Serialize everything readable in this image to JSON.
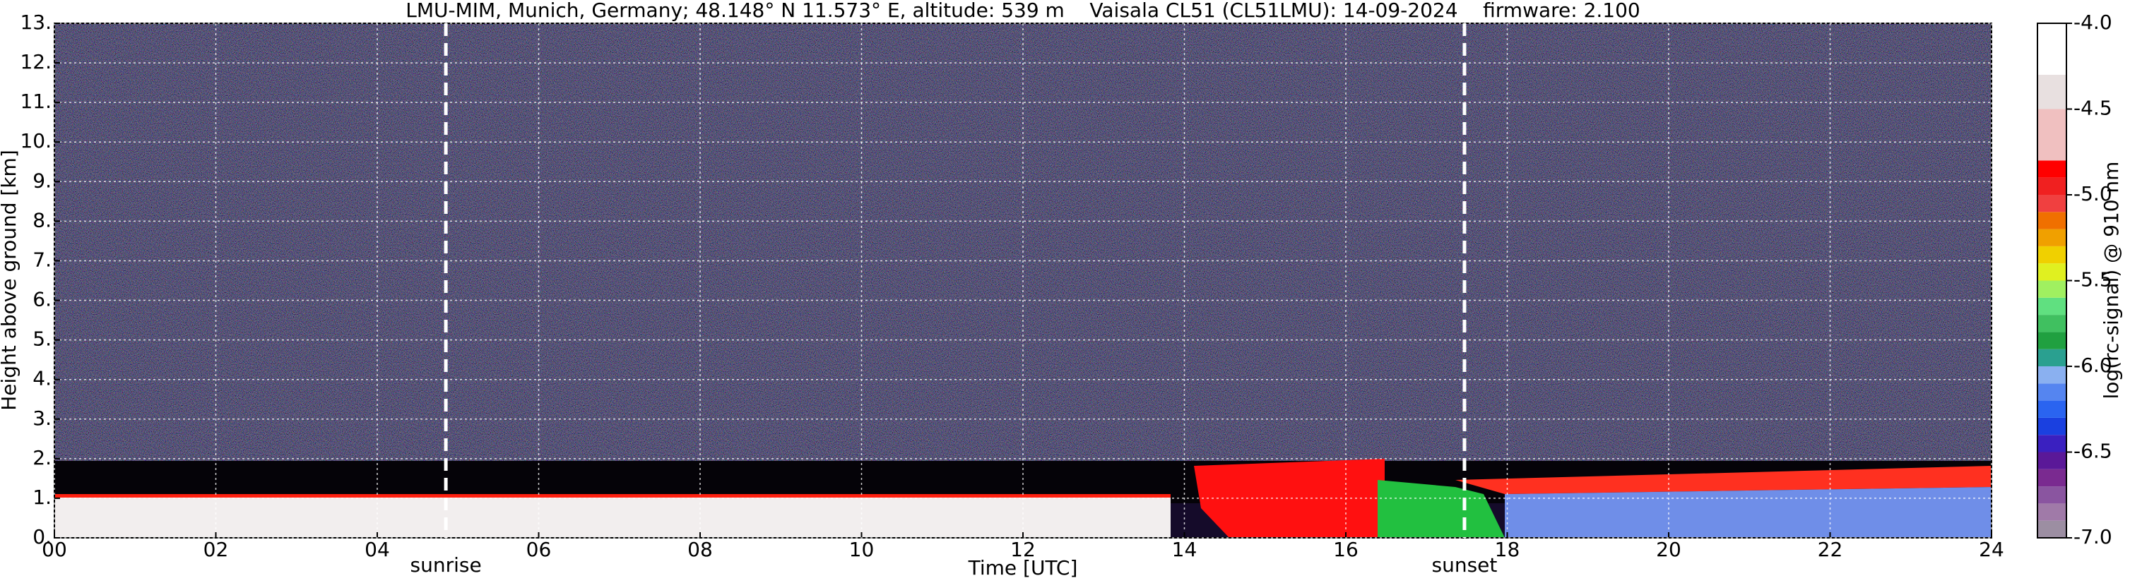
{
  "chart_data": {
    "type": "heatmap",
    "title": "LMU-MIM, Munich, Germany; 48.148° N 11.573° E, altitude: 539 m    Vaisala CL51 (CL51LMU): 14-09-2024    firmware: 2.100",
    "x_label": "Time [UTC]",
    "y_label": "Height above ground [km]",
    "xlim": [
      0,
      24
    ],
    "xticks": [
      {
        "value": 0,
        "label": "00"
      },
      {
        "value": 2,
        "label": "02"
      },
      {
        "value": 4,
        "label": "04"
      },
      {
        "value": 6,
        "label": "06"
      },
      {
        "value": 8,
        "label": "08"
      },
      {
        "value": 10,
        "label": "10"
      },
      {
        "value": 12,
        "label": "12"
      },
      {
        "value": 14,
        "label": "14"
      },
      {
        "value": 16,
        "label": "16"
      },
      {
        "value": 18,
        "label": "18"
      },
      {
        "value": 20,
        "label": "20"
      },
      {
        "value": 22,
        "label": "22"
      },
      {
        "value": 24,
        "label": "24"
      }
    ],
    "ylim": [
      0,
      13
    ],
    "yticks": [
      {
        "value": 0,
        "label": "0."
      },
      {
        "value": 1,
        "label": "1."
      },
      {
        "value": 2,
        "label": "2."
      },
      {
        "value": 3,
        "label": "3."
      },
      {
        "value": 4,
        "label": "4."
      },
      {
        "value": 5,
        "label": "5."
      },
      {
        "value": 6,
        "label": "6."
      },
      {
        "value": 7,
        "label": "7."
      },
      {
        "value": 8,
        "label": "8."
      },
      {
        "value": 9,
        "label": "9."
      },
      {
        "value": 10,
        "label": "10."
      },
      {
        "value": 11,
        "label": "11."
      },
      {
        "value": 12,
        "label": "12."
      },
      {
        "value": 13,
        "label": "13."
      }
    ],
    "grid": true,
    "annotations": [
      {
        "x": 4.85,
        "label": "sunrise"
      },
      {
        "x": 17.47,
        "label": "sunset"
      }
    ],
    "colorbar": {
      "label": "log(rc-signal) @ 910 nm",
      "lim": [
        -7.0,
        -4.0
      ],
      "ticks": [
        {
          "value": -7.0,
          "label": "-7.0"
        },
        {
          "value": -6.5,
          "label": "-6.5"
        },
        {
          "value": -6.0,
          "label": "-6.0"
        },
        {
          "value": -5.5,
          "label": "-5.5"
        },
        {
          "value": -5.0,
          "label": "-5.0"
        },
        {
          "value": -4.5,
          "label": "-4.5"
        },
        {
          "value": -4.0,
          "label": "-4.0"
        }
      ],
      "boundaries": [
        -7.0,
        -6.9,
        -6.8,
        -6.7,
        -6.6,
        -6.5,
        -6.4,
        -6.3,
        -6.2,
        -6.1,
        -6.0,
        -5.9,
        -5.8,
        -5.7,
        -5.6,
        -5.5,
        -5.4,
        -5.3,
        -5.2,
        -5.1,
        -5.0,
        -4.9,
        -4.8,
        -4.5,
        -4.3,
        -4.0
      ],
      "colors": [
        "#9c8ea2",
        "#a07aa8",
        "#8a55a0",
        "#7a2a90",
        "#5a1898",
        "#3a20c0",
        "#1a40e0",
        "#2a64f0",
        "#5585f0",
        "#8ab0f0",
        "#2aa090",
        "#20a040",
        "#40c060",
        "#60e080",
        "#a0f060",
        "#e0f020",
        "#f0d000",
        "#f0a000",
        "#f07000",
        "#f04040",
        "#f02020",
        "#ff0000",
        "#f0c0c0",
        "#e8e0e0",
        "#ffffff"
      ]
    }
  }
}
